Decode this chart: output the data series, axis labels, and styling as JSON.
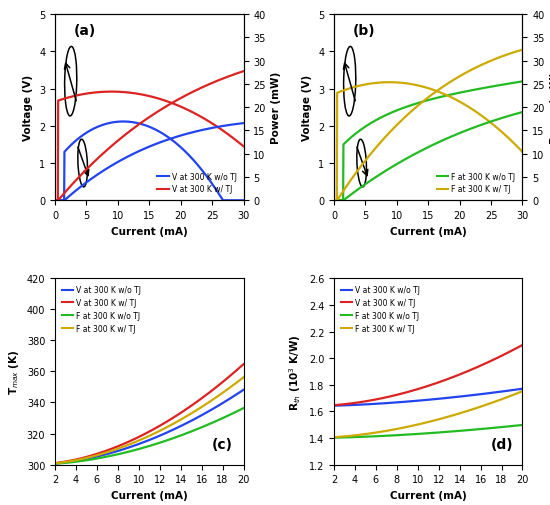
{
  "colors": {
    "blue": "#2244ee",
    "red": "#dd2222",
    "green": "#22bb22",
    "yellow": "#ccaa00"
  },
  "panel_a": {
    "label": "(a)",
    "xlim": [
      0,
      30
    ],
    "ylim_v": [
      0,
      5
    ],
    "ylim_p": [
      0,
      40
    ],
    "xlabel": "Current (mA)",
    "ylabel_left": "Voltage (V)",
    "ylabel_right": "Power (mW)",
    "legend": [
      "V at 300 K w/o TJ",
      "V at 300 K w/ TJ"
    ]
  },
  "panel_b": {
    "label": "(b)",
    "xlim": [
      0,
      30
    ],
    "ylim_v": [
      0,
      5
    ],
    "ylim_p": [
      0,
      40
    ],
    "xlabel": "Current (mA)",
    "ylabel_left": "Voltage (V)",
    "ylabel_right": "Power (mW)",
    "legend": [
      "F at 300 K w/o TJ",
      "F at 300 K w/ TJ"
    ]
  },
  "panel_c": {
    "label": "(c)",
    "xlim": [
      2,
      20
    ],
    "ylim": [
      300,
      420
    ],
    "xlabel": "Current (mA)",
    "ylabel": "T$_{max}$ (K)",
    "legend": [
      "V at 300 K w/o TJ",
      "V at 300 K w/ TJ",
      "F at 300 K w/o TJ",
      "F at 300 K w/ TJ"
    ]
  },
  "panel_d": {
    "label": "(d)",
    "xlim": [
      2,
      20
    ],
    "ylim": [
      1.2,
      2.6
    ],
    "xlabel": "Current (mA)",
    "ylabel": "R$_{th}$ (10$^3$ K/W)",
    "legend": [
      "V at 300 K w/o TJ",
      "V at 300 K w/ TJ",
      "F at 300 K w/o TJ",
      "F at 300 K w/ TJ"
    ]
  }
}
